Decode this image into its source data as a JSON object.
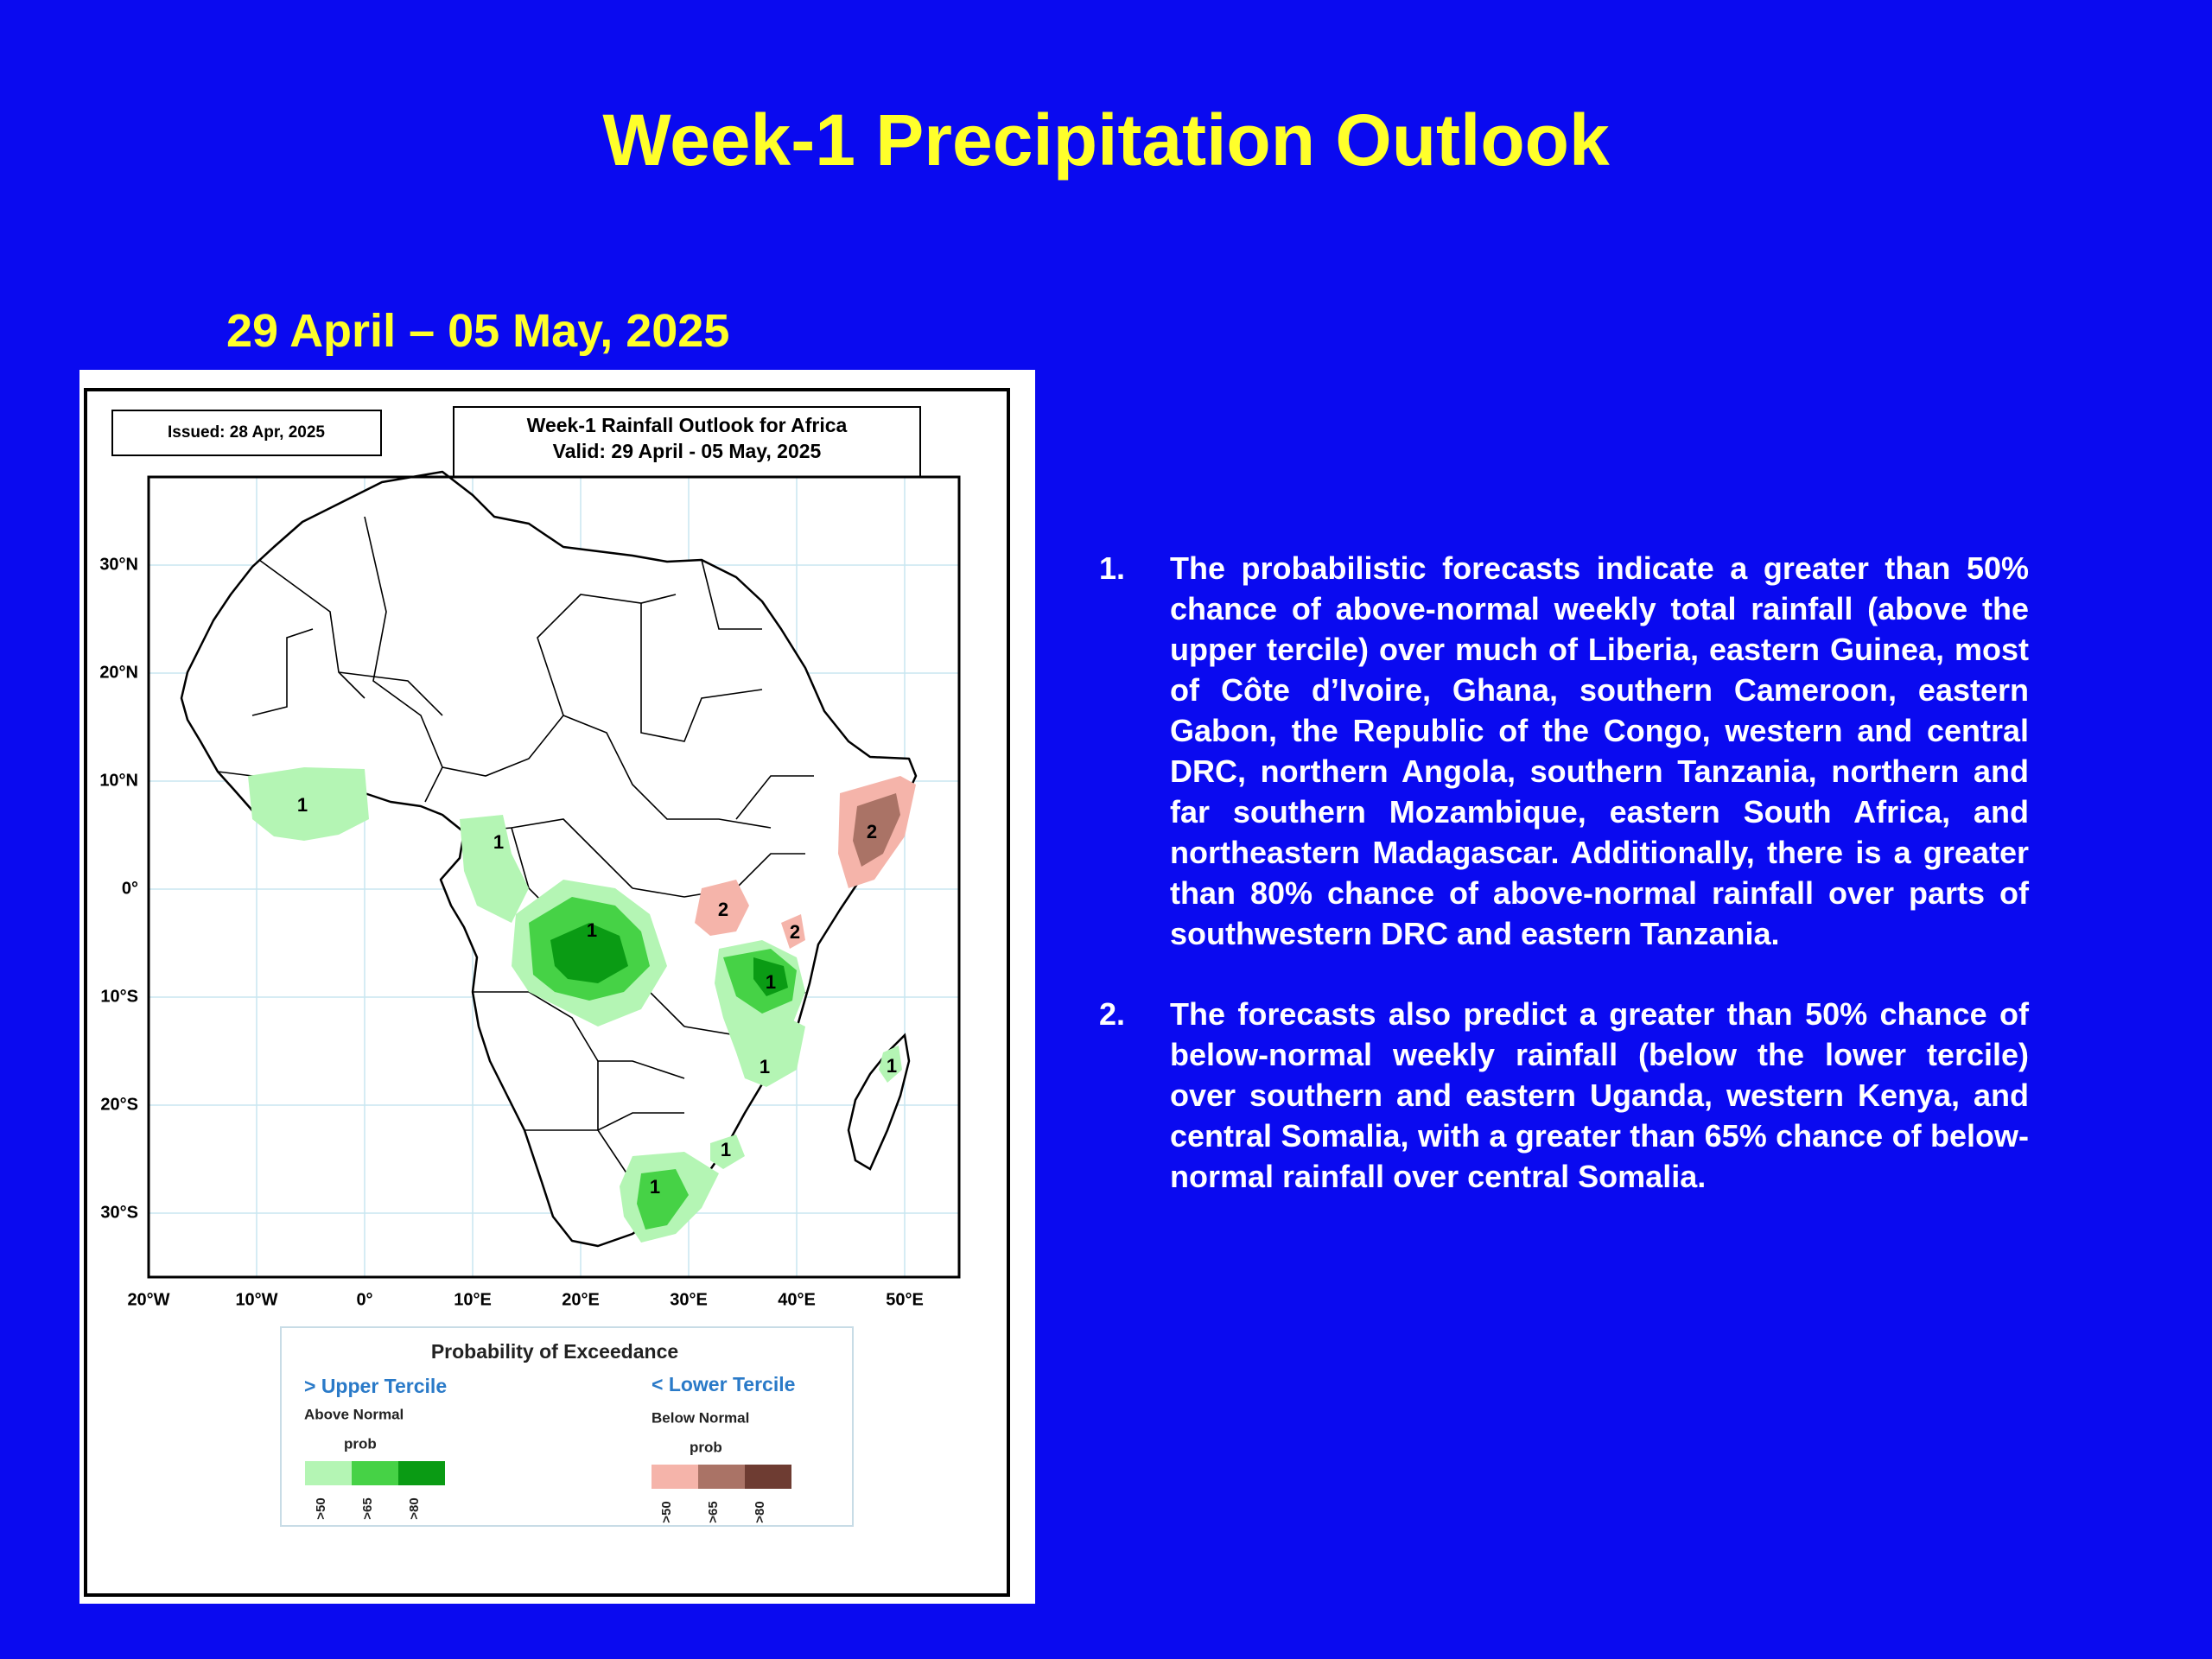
{
  "slide": {
    "title": "Week-1 Precipitation Outlook",
    "date_range": "29 April – 05 May, 2025"
  },
  "map": {
    "issued_label": "Issued: 28 Apr, 2025",
    "map_title_line1": "Week-1 Rainfall Outlook for Africa",
    "map_title_line2": "Valid: 29 April - 05 May, 2025",
    "lat_labels": [
      "30°N",
      "20°N",
      "10°N",
      "0°",
      "10°S",
      "20°S",
      "30°S"
    ],
    "lon_labels": [
      "20°W",
      "10°W",
      "0°",
      "10°E",
      "20°E",
      "30°E",
      "40°E",
      "50°E"
    ],
    "contour_labels": {
      "west_africa": "1",
      "cameroon": "1",
      "drc": "1",
      "tanzania": "1",
      "mozambique": "1",
      "madagascar": "1",
      "south_africa_east": "1",
      "south_africa": "1",
      "uganda": "2",
      "kenya": "2",
      "somalia": "2"
    },
    "colors": {
      "above_50": "#b4f5b4",
      "above_65": "#46d246",
      "above_80": "#0a9b14",
      "below_50": "#f5b4aa",
      "below_65": "#aa7366",
      "below_80": "#6e3c32",
      "gridline": "#c8e6f0"
    },
    "legend": {
      "title": "Probability of Exceedance",
      "upper_title": "> Upper Tercile",
      "upper_sub": "Above Normal",
      "upper_prob": "prob",
      "upper_ticks": [
        ">50",
        ">65",
        ">80"
      ],
      "lower_title": "< Lower Tercile",
      "lower_sub": "Below Normal",
      "lower_prob": "prob",
      "lower_ticks": [
        ">50",
        ">65",
        ">80"
      ]
    }
  },
  "bullets": [
    {
      "number": "1.",
      "text": "The probabilistic forecasts indicate a greater than 50% chance of above-normal weekly total rainfall (above the upper tercile) over much of Liberia, eastern Guinea, most of Côte d’Ivoire, Ghana, southern Cameroon, eastern Gabon, the Republic of the Congo, western and central DRC, northern Angola, southern Tanzania, northern and far southern Mozambique, eastern South Africa, and northeastern Madagascar. Additionally, there is a greater than 80% chance of above-normal rainfall over parts of southwestern DRC and eastern Tanzania."
    },
    {
      "number": "2.",
      "text": "The forecasts also predict a greater than 50% chance of below-normal weekly rainfall (below the lower tercile) over southern and eastern Uganda, western Kenya, and central Somalia, with a greater than 65% chance of below-normal rainfall over central Somalia."
    }
  ]
}
